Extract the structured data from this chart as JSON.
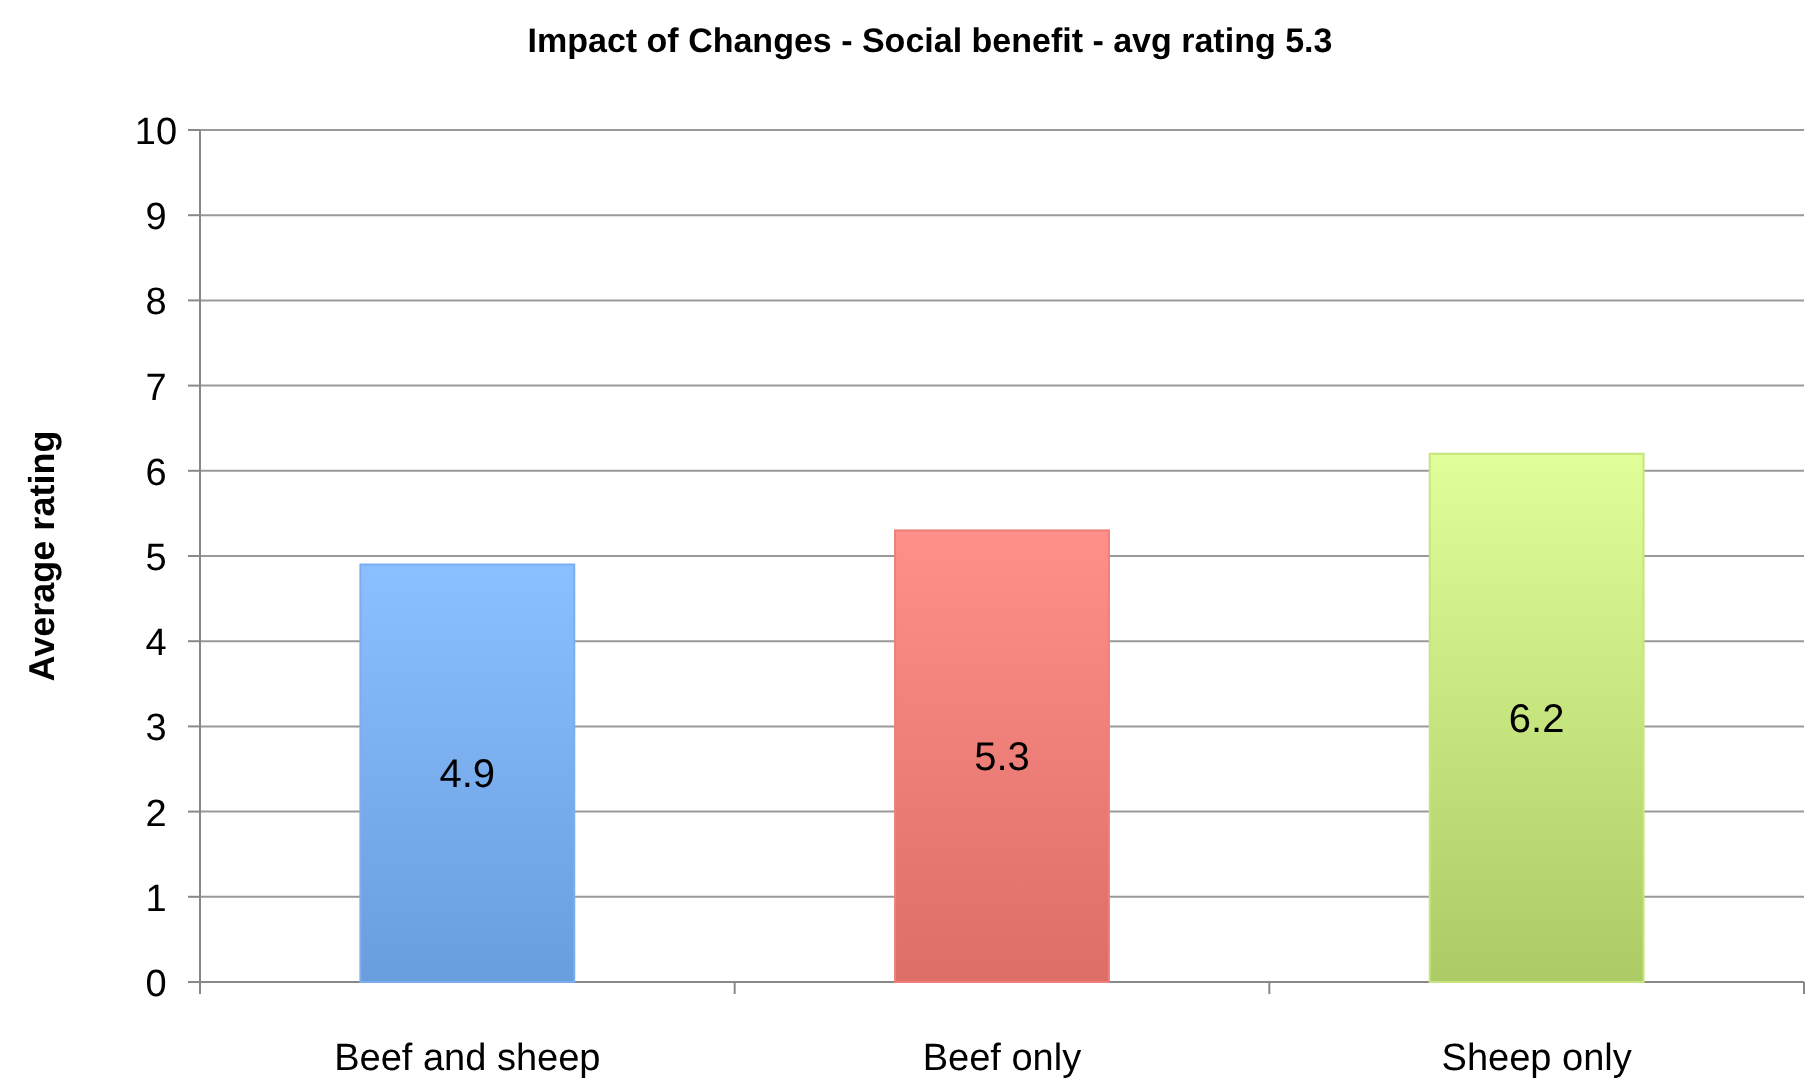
{
  "chart_data": {
    "type": "bar",
    "title": "Impact of Changes - Social benefit  - avg rating 5.3",
    "ylabel": "Average rating",
    "categories": [
      "Beef and sheep",
      "Beef only",
      "Sheep only"
    ],
    "values": [
      4.9,
      5.3,
      6.2
    ],
    "colors": [
      "#7aaeee",
      "#ee7f78",
      "#c6e57e"
    ],
    "ylim": [
      0,
      10
    ],
    "yticks": [
      0,
      1,
      2,
      3,
      4,
      5,
      6,
      7,
      8,
      9,
      10
    ],
    "grid": "y",
    "data_labels": true
  }
}
